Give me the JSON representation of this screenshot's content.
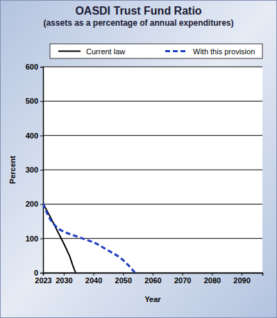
{
  "chart_data": {
    "type": "line",
    "title": "OASDI Trust Fund Ratio",
    "subtitle": "(assets as a percentage of annual expenditures)",
    "x_label": "Year",
    "y_label": "Percent",
    "x": [
      2023,
      2024,
      2025,
      2026,
      2027,
      2028,
      2029,
      2030,
      2031,
      2032,
      2033,
      2034,
      2035,
      2036,
      2037,
      2038,
      2039,
      2040,
      2041,
      2042,
      2043,
      2044,
      2045,
      2046,
      2047,
      2048,
      2049,
      2050,
      2051,
      2052,
      2053,
      2054,
      2055
    ],
    "series": [
      {
        "name": "Current law",
        "color": "#000000",
        "line_style": "solid",
        "values": [
          202,
          186,
          170,
          153,
          136,
          119,
          102,
          85,
          67,
          48,
          22,
          0,
          null,
          null,
          null,
          null,
          null,
          null,
          null,
          null,
          null,
          null,
          null,
          null,
          null,
          null,
          null,
          null,
          null,
          null,
          null,
          null,
          null
        ]
      },
      {
        "name": "With this provision",
        "color": "#1f3fbf",
        "line_style": "dashed",
        "values": [
          202,
          180,
          162,
          148,
          138,
          130,
          124,
          120,
          116,
          113,
          110,
          107,
          104,
          101,
          98,
          95,
          92,
          89,
          85,
          80,
          75,
          70,
          65,
          60,
          55,
          50,
          44,
          37,
          29,
          20,
          10,
          0,
          null
        ]
      }
    ],
    "xlim": [
      2023,
      2097
    ],
    "xticks": [
      2023,
      2030,
      2040,
      2050,
      2060,
      2070,
      2080,
      2090
    ],
    "ylim": [
      0,
      600
    ],
    "yticks": [
      0,
      100,
      200,
      300,
      400,
      500,
      600
    ],
    "grid": true,
    "legend": "top"
  }
}
